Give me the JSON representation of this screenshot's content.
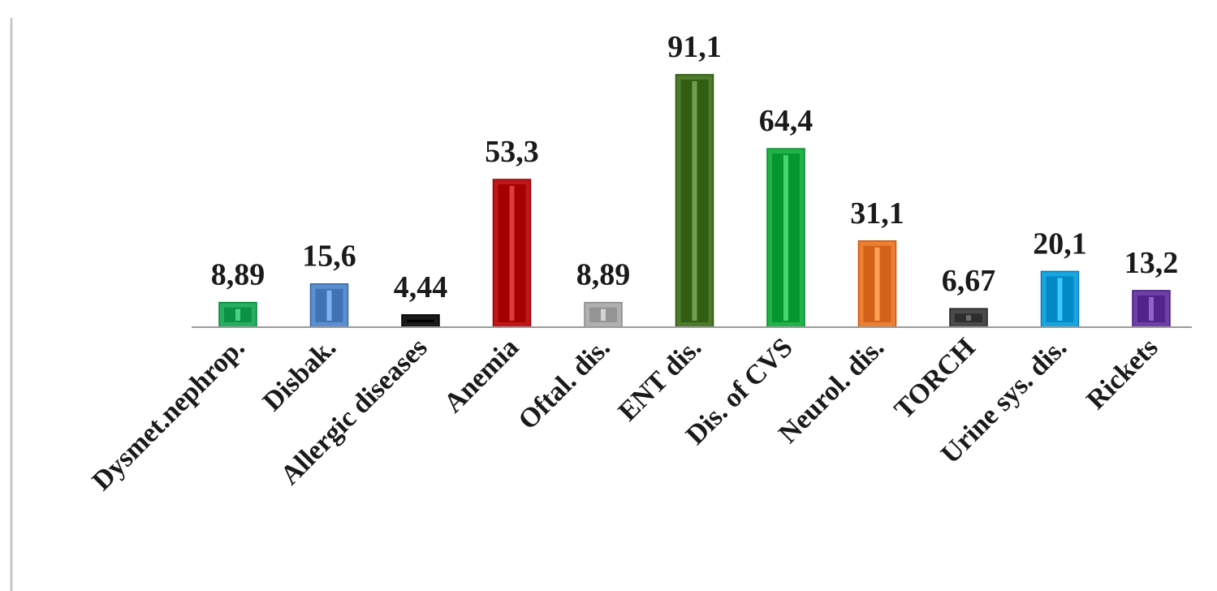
{
  "chart_data": {
    "type": "bar",
    "categories": [
      "Dysmet.nephrop.",
      "Disbak.",
      "Allergic diseases",
      "Anemia",
      "Oftal. dis.",
      "ENT dis.",
      "Dis. of CVS",
      "Neurol. dis.",
      "TORCH",
      "Urine sys. dis.",
      "Rickets"
    ],
    "values": [
      8.89,
      15.6,
      4.44,
      53.3,
      8.89,
      91.1,
      64.4,
      31.1,
      6.67,
      20.1,
      13.2
    ],
    "value_labels": [
      "8,89",
      "15,6",
      "4,44",
      "53,3",
      "8,89",
      "91,1",
      "64,4",
      "31,1",
      "6,67",
      "20,1",
      "13,2"
    ],
    "colors": [
      "#27ae60",
      "#5b8fd0",
      "#1a1a1a",
      "#c0161b",
      "#b0b0b0",
      "#4e7a2e",
      "#22b24c",
      "#ee7e33",
      "#4a4a4a",
      "#1aa5e0",
      "#6f3fa8"
    ],
    "ylim": [
      0,
      95
    ],
    "title": "",
    "xlabel": "",
    "ylabel": "",
    "grid": false,
    "legend": "none"
  }
}
